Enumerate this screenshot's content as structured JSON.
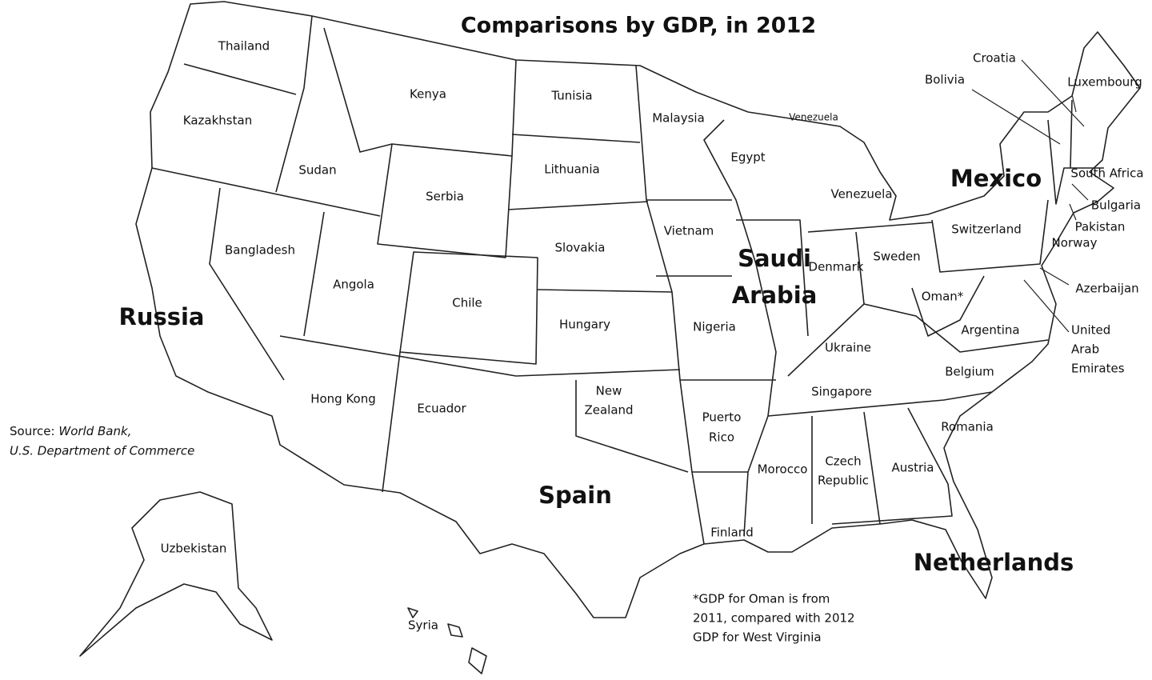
{
  "title": "Comparisons by GDP, in 2012",
  "source": {
    "prefix": "Source:",
    "lines": [
      "World Bank,",
      "U.S. Department of Commerce"
    ]
  },
  "note": [
    "*GDP for Oman is from",
    "2011, compared with 2012",
    "GDP for West Virginia"
  ],
  "labels": [
    [
      "Thailand"
    ],
    [
      "Kazakhstan"
    ],
    [
      "Sudan"
    ],
    [
      "Kenya"
    ],
    [
      "Tunisia"
    ],
    [
      "Malaysia"
    ],
    [
      "Venezuela"
    ],
    [
      "Egypt"
    ],
    [
      "Lithuania"
    ],
    [
      "Serbia"
    ],
    [
      "Venezuela"
    ],
    [
      "Mexico"
    ],
    [
      "Croatia"
    ],
    [
      "Bolivia"
    ],
    [
      "Luxembourg"
    ],
    [
      "South Africa"
    ],
    [
      "Bulgaria"
    ],
    [
      "Pakistan"
    ],
    [
      "Norway"
    ],
    [
      "Azerbaijan"
    ],
    [
      "United",
      "Arab",
      "Emirates"
    ],
    [
      "Bangladesh"
    ],
    [
      "Angola"
    ],
    [
      "Chile"
    ],
    [
      "Slovakia"
    ],
    [
      "Vietnam"
    ],
    [
      "Saudi",
      "Arabia"
    ],
    [
      "Denmark"
    ],
    [
      "Sweden"
    ],
    [
      "Switzerland"
    ],
    [
      "Oman*"
    ],
    [
      "Russia"
    ],
    [
      "Hungary"
    ],
    [
      "Nigeria"
    ],
    [
      "Argentina"
    ],
    [
      "Ukraine"
    ],
    [
      "Belgium"
    ],
    [
      "Hong Kong"
    ],
    [
      "Ecuador"
    ],
    [
      "New",
      "Zealand"
    ],
    [
      "Puerto",
      "Rico"
    ],
    [
      "Singapore"
    ],
    [
      "Romania"
    ],
    [
      "Morocco"
    ],
    [
      "Czech",
      "Republic"
    ],
    [
      "Austria"
    ],
    [
      "Spain"
    ],
    [
      "Finland"
    ],
    [
      "Netherlands"
    ],
    [
      "Uzbekistan"
    ],
    [
      "Syria"
    ]
  ]
}
